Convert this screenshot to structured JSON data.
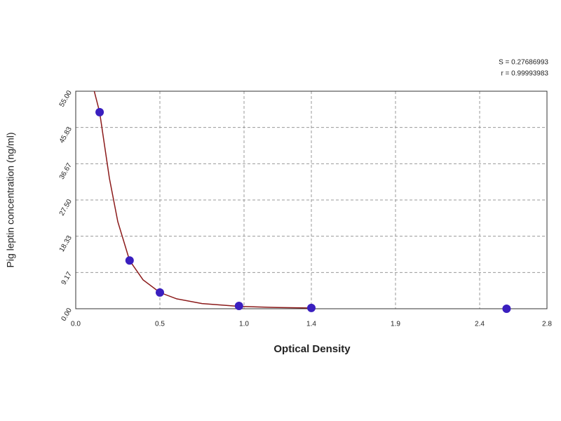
{
  "chart_data": {
    "type": "scatter",
    "annotations": [
      "S = 0.27686993",
      "r = 0.99993983"
    ],
    "xlabel": "Optical Density",
    "ylabel": "Pig leptin concentration (ng/ml)",
    "x": [
      0.142,
      0.32,
      0.5,
      0.97,
      1.4,
      2.56
    ],
    "values": [
      49.7,
      12.2,
      4.1,
      0.7,
      0.2,
      0
    ],
    "point_color": "#3a1fbf",
    "curve_x": [
      0.11,
      0.142,
      0.2,
      0.25,
      0.32,
      0.4,
      0.5,
      0.6,
      0.75,
      0.97,
      1.2,
      1.38
    ],
    "curve_y": [
      55,
      49.7,
      33,
      22,
      12.2,
      7.3,
      4.1,
      2.5,
      1.3,
      0.6,
      0.3,
      0.2
    ],
    "curve_color": "#8b1a1a",
    "xlim": [
      0,
      2.8
    ],
    "ylim": [
      0,
      55
    ],
    "xticks": [
      {
        "value": 0,
        "label": "0.0"
      },
      0.5,
      {
        "value": 1,
        "label": "1.0"
      },
      1.4,
      1.9,
      2.4,
      2.8
    ],
    "yticks": [
      {
        "value": 0,
        "label": "0.00"
      },
      9.17,
      18.33,
      {
        "value": 27.5,
        "label": "27.50"
      },
      36.67,
      45.83,
      {
        "value": 55,
        "label": "55.00"
      }
    ],
    "grid": true
  }
}
